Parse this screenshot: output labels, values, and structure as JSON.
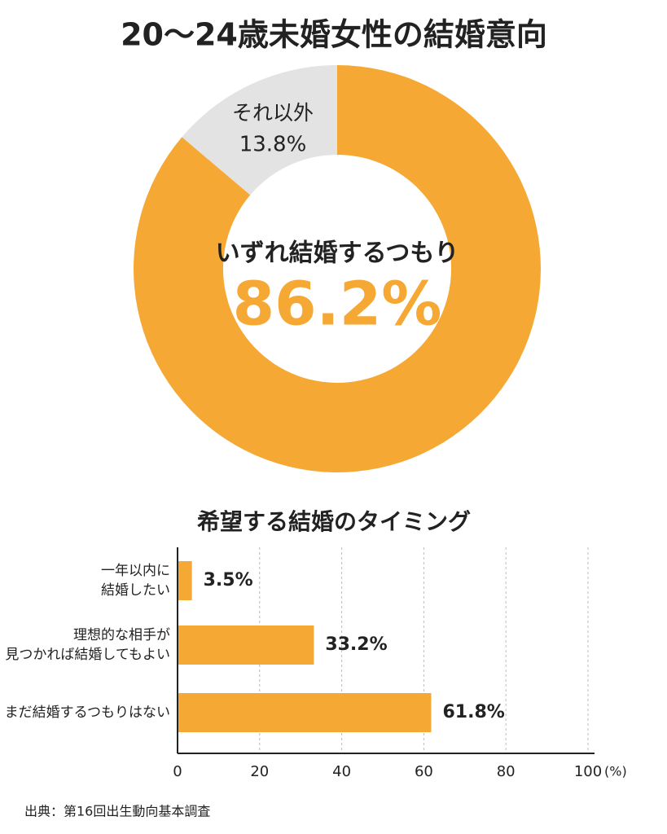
{
  "chart_data": [
    {
      "type": "donut",
      "title": "20～24歳未婚女性の結婚意向",
      "categories": [
        "いずれ結婚するつもり",
        "それ以外"
      ],
      "values": [
        86.2,
        13.8
      ],
      "value_labels": [
        "86.2%",
        "13.8%"
      ],
      "colors": [
        "#f5a833",
        "#e3e3e3"
      ]
    },
    {
      "type": "hbar",
      "title": "希望する結婚のタイミング",
      "categories": [
        "一年以内に\n結婚したい",
        "理想的な相手が\n見つかれば結婚してもよい",
        "まだ結婚するつもりはない"
      ],
      "values": [
        3.5,
        33.2,
        61.8
      ],
      "value_labels": [
        "3.5%",
        "33.2%",
        "61.8%"
      ],
      "color": "#f5a833",
      "xlim": [
        0,
        100
      ],
      "xticks": [
        0,
        20,
        40,
        60,
        80,
        100
      ],
      "xlabel": "(%)",
      "grid": true,
      "source": "出典：第16回出生動向基本調査"
    }
  ]
}
